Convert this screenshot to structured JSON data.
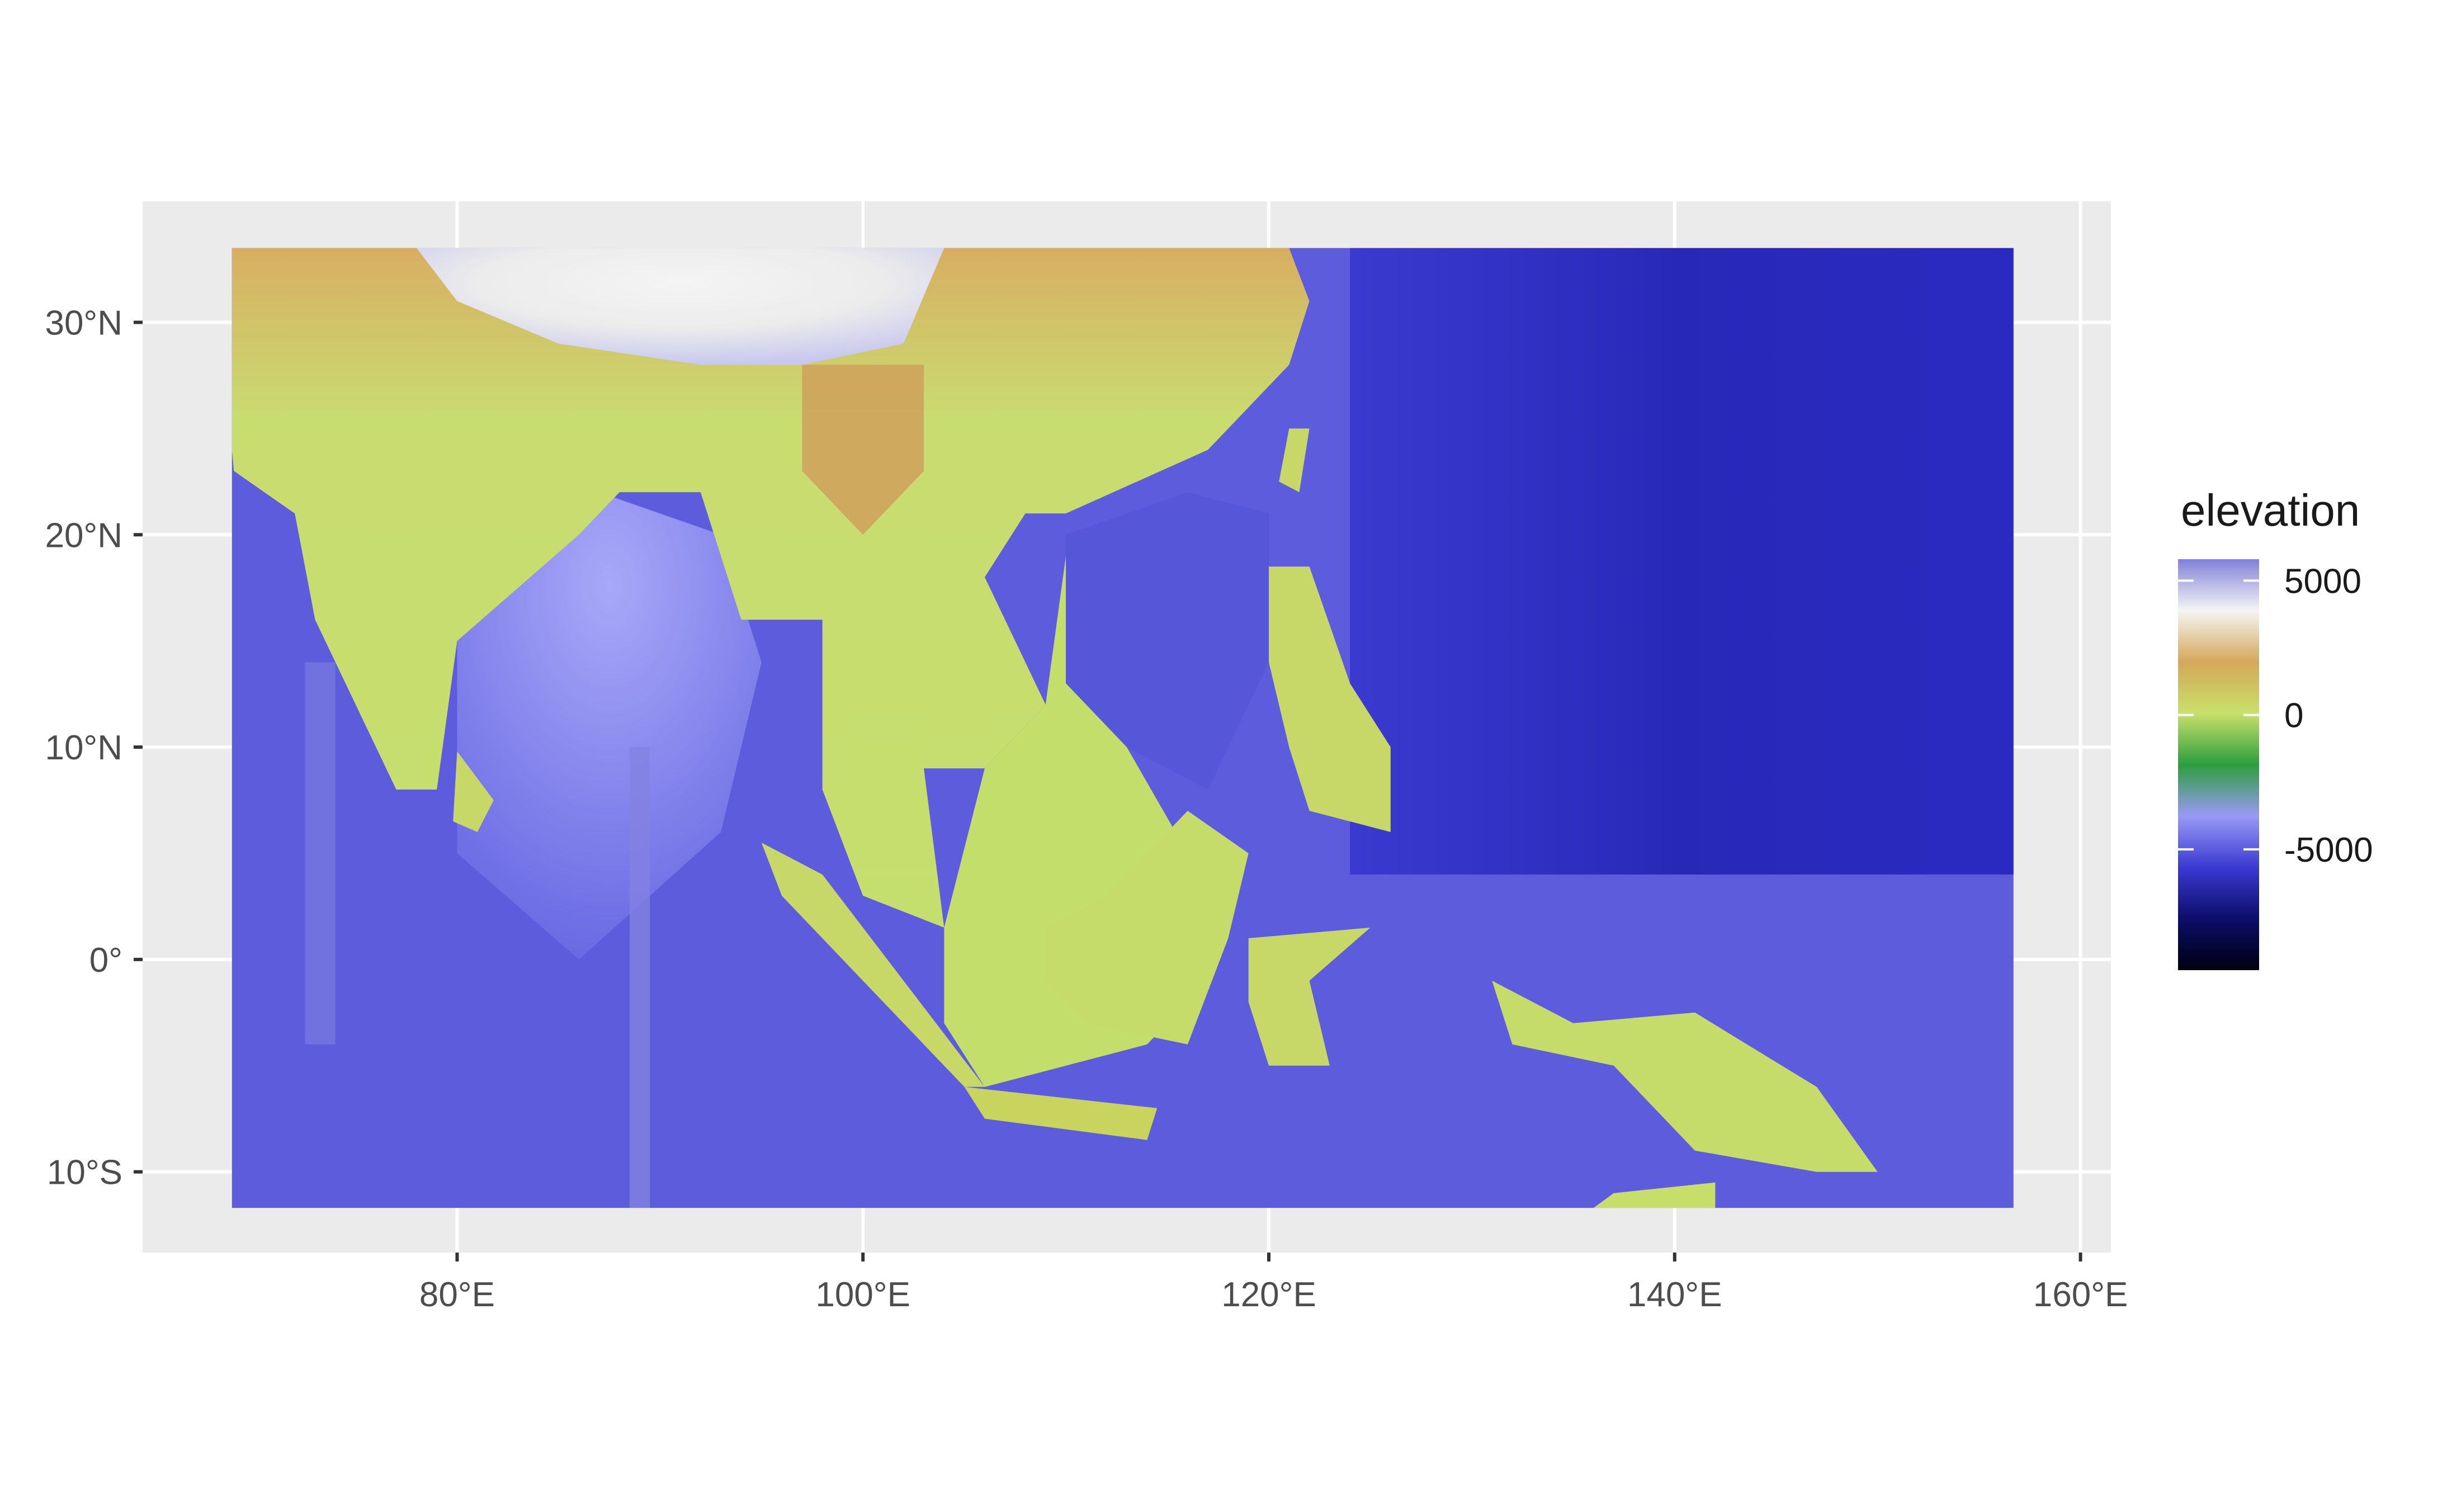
{
  "map": {
    "x_axis": {
      "ticks": [
        {
          "lon": 80,
          "label": "80°E"
        },
        {
          "lon": 100,
          "label": "100°E"
        },
        {
          "lon": 120,
          "label": "120°E"
        },
        {
          "lon": 140,
          "label": "140°E"
        },
        {
          "lon": 160,
          "label": "160°E"
        }
      ],
      "range": [
        64.5,
        161.5
      ]
    },
    "y_axis": {
      "ticks": [
        {
          "lat": 30,
          "label": "30°N"
        },
        {
          "lat": 20,
          "label": "20°N"
        },
        {
          "lat": 10,
          "label": "10°N"
        },
        {
          "lat": 0,
          "label": "0°"
        },
        {
          "lat": -10,
          "label": "10°S"
        }
      ],
      "range": [
        -13.8,
        35.7
      ]
    },
    "raster_extent": {
      "lon_min": 68.9,
      "lon_max": 156.7,
      "lat_min": -11.7,
      "lat_max": 33.5
    },
    "panel_background": "#ebebeb",
    "grid_color": "#ffffff"
  },
  "legend": {
    "title": "elevation",
    "labels": [
      {
        "value": 5000,
        "label": "5000"
      },
      {
        "value": 0,
        "label": "0"
      },
      {
        "value": -5000,
        "label": "-5000"
      }
    ],
    "range": [
      -9500,
      5800
    ],
    "colors": [
      "#000010",
      "#0d0d6b",
      "#3a3ad2",
      "#9999f5",
      "#2c9e3e",
      "#c8e06a",
      "#d4a85a",
      "#f5f5f5",
      "#8080d8"
    ]
  }
}
